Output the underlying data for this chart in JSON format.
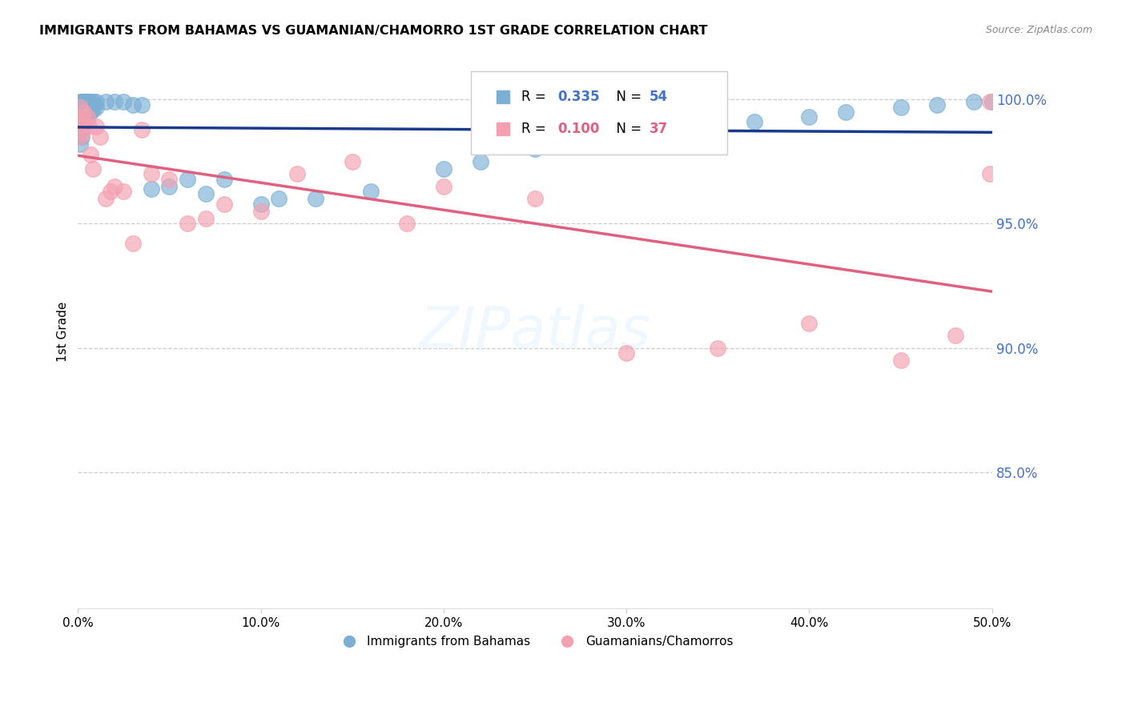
{
  "title": "IMMIGRANTS FROM BAHAMAS VS GUAMANIAN/CHAMORRO 1ST GRADE CORRELATION CHART",
  "source": "Source: ZipAtlas.com",
  "ylabel": "1st Grade",
  "legend_label1": "Immigrants from Bahamas",
  "legend_label2": "Guamanians/Chamorros",
  "R1": 0.335,
  "N1": 54,
  "R2": 0.1,
  "N2": 37,
  "color1": "#7BAFD4",
  "color2": "#F4A0B0",
  "trendline_color1": "#1A3A8C",
  "trendline_color2": "#E06080",
  "xmin": 0.0,
  "xmax": 0.5,
  "ymin": 0.795,
  "ymax": 1.018,
  "yticks": [
    0.85,
    0.9,
    0.95,
    1.0
  ],
  "xticks": [
    0.0,
    0.1,
    0.2,
    0.3,
    0.4,
    0.5
  ],
  "blue_x": [
    0.001,
    0.001,
    0.001,
    0.001,
    0.001,
    0.002,
    0.002,
    0.002,
    0.002,
    0.003,
    0.003,
    0.003,
    0.004,
    0.004,
    0.005,
    0.005,
    0.005,
    0.006,
    0.006,
    0.007,
    0.007,
    0.008,
    0.008,
    0.009,
    0.01,
    0.01,
    0.015,
    0.02,
    0.025,
    0.03,
    0.035,
    0.04,
    0.05,
    0.06,
    0.07,
    0.08,
    0.1,
    0.11,
    0.13,
    0.16,
    0.2,
    0.22,
    0.25,
    0.28,
    0.3,
    0.32,
    0.35,
    0.37,
    0.4,
    0.42,
    0.45,
    0.47,
    0.49,
    0.5
  ],
  "blue_y": [
    0.999,
    0.997,
    0.993,
    0.988,
    0.982,
    0.999,
    0.996,
    0.991,
    0.985,
    0.999,
    0.995,
    0.99,
    0.999,
    0.994,
    0.999,
    0.996,
    0.992,
    0.999,
    0.995,
    0.999,
    0.995,
    0.999,
    0.996,
    0.998,
    0.999,
    0.997,
    0.999,
    0.999,
    0.999,
    0.998,
    0.998,
    0.964,
    0.965,
    0.968,
    0.962,
    0.968,
    0.958,
    0.96,
    0.96,
    0.963,
    0.972,
    0.975,
    0.98,
    0.982,
    0.985,
    0.987,
    0.989,
    0.991,
    0.993,
    0.995,
    0.997,
    0.998,
    0.999,
    0.999
  ],
  "pink_x": [
    0.001,
    0.001,
    0.001,
    0.002,
    0.002,
    0.003,
    0.004,
    0.005,
    0.006,
    0.007,
    0.008,
    0.01,
    0.012,
    0.015,
    0.018,
    0.02,
    0.025,
    0.03,
    0.035,
    0.04,
    0.05,
    0.06,
    0.07,
    0.08,
    0.1,
    0.12,
    0.15,
    0.18,
    0.2,
    0.25,
    0.3,
    0.35,
    0.4,
    0.45,
    0.48,
    0.499,
    0.499
  ],
  "pink_y": [
    0.997,
    0.991,
    0.985,
    0.993,
    0.987,
    0.995,
    0.99,
    0.993,
    0.989,
    0.978,
    0.972,
    0.989,
    0.985,
    0.96,
    0.963,
    0.965,
    0.963,
    0.942,
    0.988,
    0.97,
    0.968,
    0.95,
    0.952,
    0.958,
    0.955,
    0.97,
    0.975,
    0.95,
    0.965,
    0.96,
    0.898,
    0.9,
    0.91,
    0.895,
    0.905,
    0.999,
    0.97
  ]
}
